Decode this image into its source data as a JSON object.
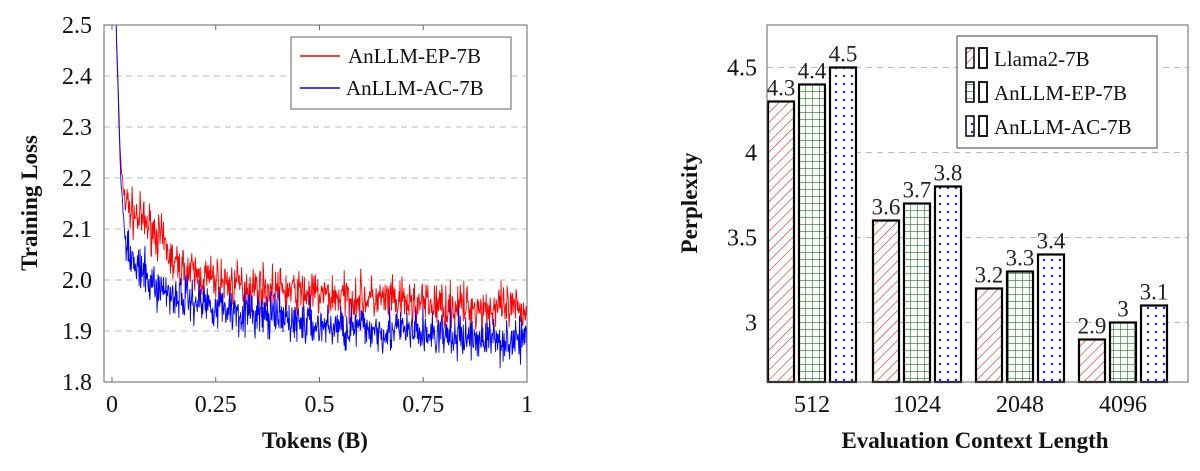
{
  "chart_data": [
    {
      "type": "line",
      "xlabel": "Tokens (B)",
      "ylabel": "Training Loss",
      "xlim": [
        0,
        1
      ],
      "ylim": [
        1.8,
        2.5
      ],
      "xticks": [
        "0",
        "0.25",
        "0.5",
        "0.75",
        "1"
      ],
      "xtick_values": [
        0,
        0.25,
        0.5,
        0.75,
        1
      ],
      "yticks": [
        "1.8",
        "1.9",
        "2.0",
        "2.1",
        "2.2",
        "2.3",
        "2.4",
        "2.5"
      ],
      "ytick_values": [
        1.8,
        1.9,
        2.0,
        2.1,
        2.2,
        2.3,
        2.4,
        2.5
      ],
      "grid": "horizontal dashed",
      "legend_position": "top-right",
      "noisy": true,
      "series": [
        {
          "name": "AnLLM-EP-7B",
          "color": "#ff0000",
          "x": [
            0.01,
            0.015,
            0.02,
            0.03,
            0.05,
            0.1,
            0.125,
            0.15,
            0.2,
            0.25,
            0.3,
            0.4,
            0.5,
            0.6,
            0.7,
            0.8,
            0.9,
            1.0
          ],
          "y": [
            2.5,
            2.38,
            2.24,
            2.16,
            2.13,
            2.1,
            2.07,
            2.03,
            2.01,
            2.0,
            1.99,
            1.98,
            1.97,
            1.965,
            1.955,
            1.95,
            1.945,
            1.94
          ]
        },
        {
          "name": "AnLLM-AC-7B",
          "color": "#0000ff",
          "x": [
            0.01,
            0.015,
            0.02,
            0.03,
            0.05,
            0.1,
            0.125,
            0.15,
            0.2,
            0.25,
            0.3,
            0.4,
            0.5,
            0.6,
            0.7,
            0.8,
            0.9,
            1.0
          ],
          "y": [
            2.5,
            2.36,
            2.22,
            2.1,
            2.03,
            1.99,
            1.98,
            1.97,
            1.96,
            1.95,
            1.94,
            1.925,
            1.91,
            1.905,
            1.9,
            1.89,
            1.885,
            1.88
          ]
        }
      ]
    },
    {
      "type": "bar",
      "xlabel": "Evaluation Context Length",
      "ylabel": "Perplexity",
      "ylim": [
        2.65,
        4.75
      ],
      "categories": [
        "512",
        "1024",
        "2048",
        "4096"
      ],
      "yticks": [
        "3",
        "3.5",
        "4",
        "4.5"
      ],
      "ytick_values": [
        3,
        3.5,
        4,
        4.5
      ],
      "grid": "horizontal dashed",
      "legend_position": "top-right",
      "series": [
        {
          "name": "Llama2-7B",
          "color": "#e03030",
          "pattern": "diagonal-hatch",
          "values": [
            4.3,
            3.6,
            3.2,
            2.9
          ],
          "labels": [
            "4.3",
            "3.6",
            "3.2",
            "2.9"
          ]
        },
        {
          "name": "AnLLM-EP-7B",
          "color": "#1a7a1a",
          "pattern": "grid",
          "values": [
            4.4,
            3.7,
            3.3,
            3.0
          ],
          "labels": [
            "4.4",
            "3.7",
            "3.3",
            "3"
          ]
        },
        {
          "name": "AnLLM-AC-7B",
          "color": "#1a1aff",
          "pattern": "dots",
          "values": [
            4.5,
            3.8,
            3.4,
            3.1
          ],
          "labels": [
            "4.5",
            "3.8",
            "3.4",
            "3.1"
          ]
        }
      ]
    }
  ]
}
